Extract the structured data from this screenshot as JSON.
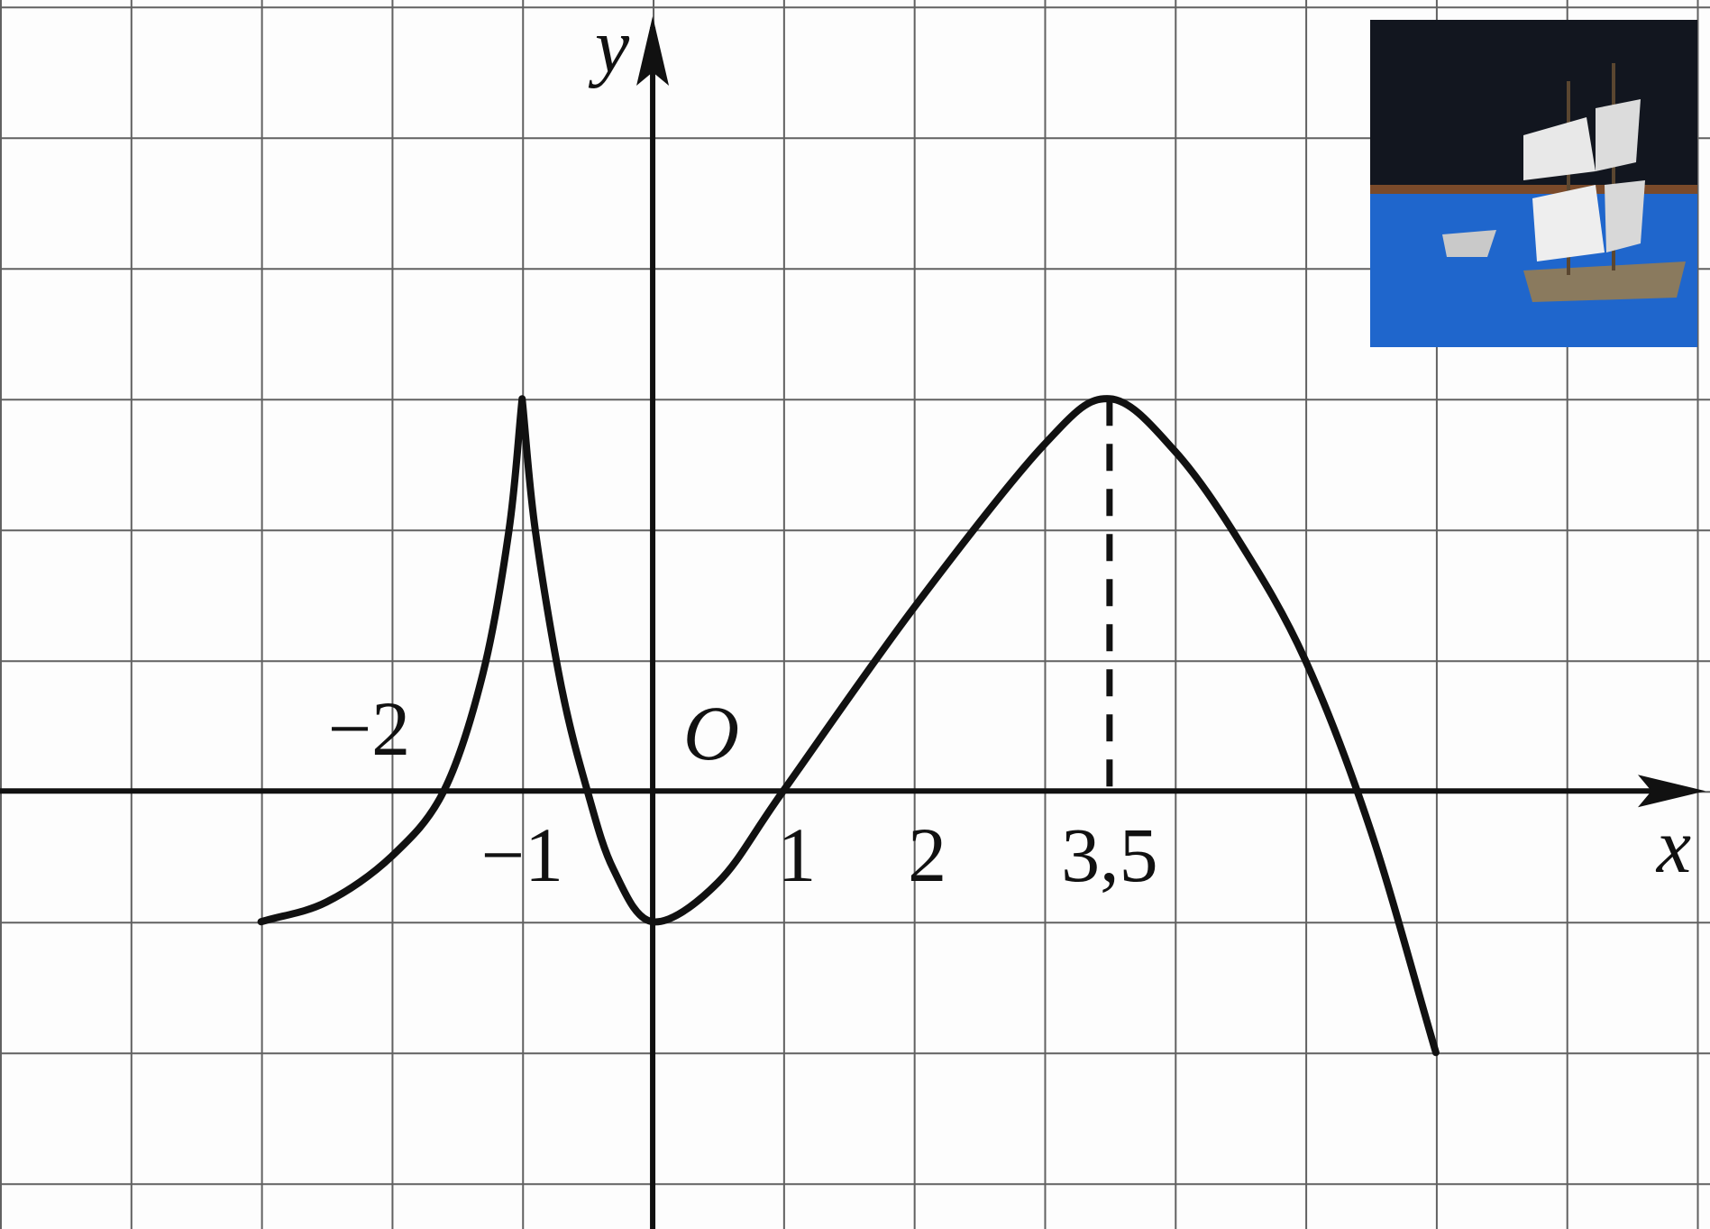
{
  "chart_data": {
    "type": "line",
    "xlabel": "x",
    "ylabel": "y",
    "origin_label": "O",
    "x": [
      -3,
      -2.5,
      -2,
      -1.6,
      -1.3,
      -1.1,
      -1,
      -0.9,
      -0.7,
      -0.5,
      -0.3,
      0,
      0.5,
      1,
      2,
      3,
      3.5,
      4,
      4.5,
      5,
      5.5,
      6
    ],
    "values": [
      -1,
      -0.85,
      -0.5,
      0,
      0.9,
      2,
      3,
      2,
      0.8,
      0,
      -0.6,
      -1,
      -0.7,
      0,
      1.4,
      2.65,
      3,
      2.6,
      1.9,
      1.0,
      -0.3,
      -2
    ],
    "color": "#111111",
    "xlim": [
      -5,
      8.1
    ],
    "ylim": [
      -3.35,
      6.05
    ],
    "xticks": [
      {
        "value": -2,
        "label": "−2"
      },
      {
        "value": -1,
        "label": "−1"
      },
      1,
      2,
      {
        "value": 3.5,
        "label": "3,5"
      }
    ],
    "grid": true
  }
}
